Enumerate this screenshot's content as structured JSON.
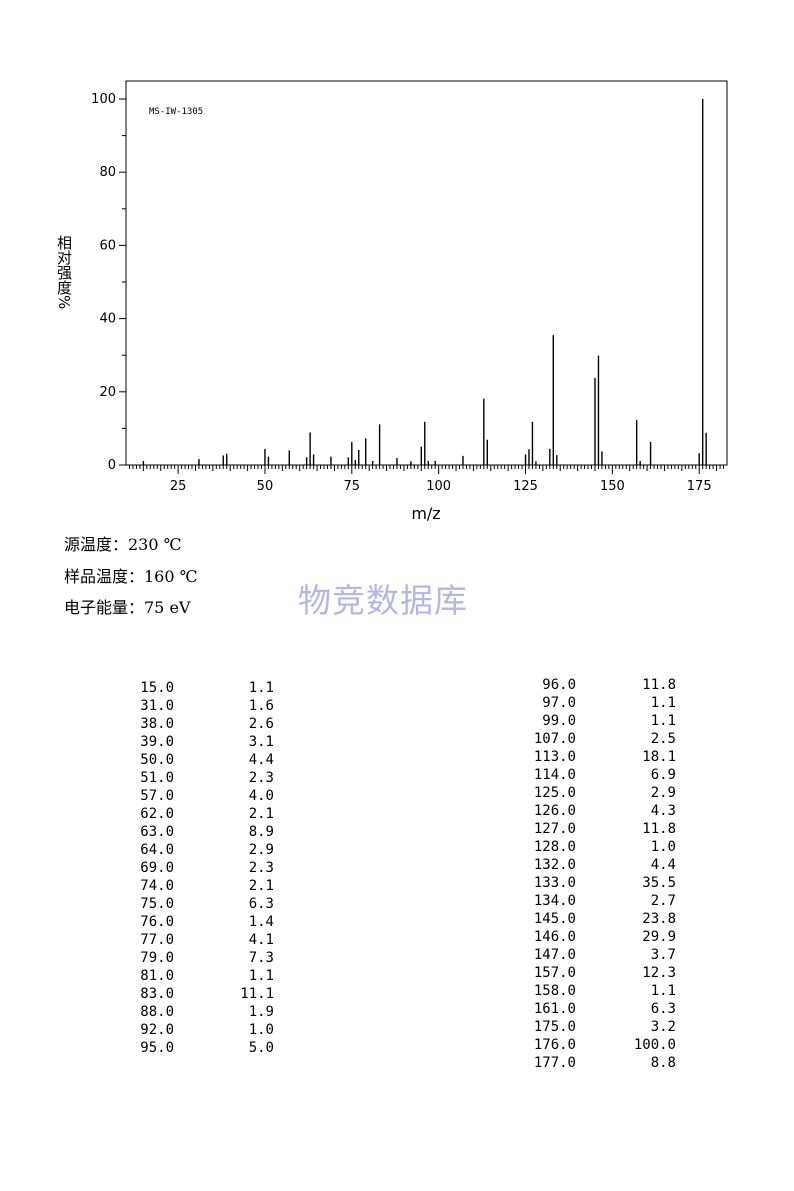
{
  "chart_data": {
    "type": "bar",
    "annotation": "MS-IW-1305",
    "xlabel": "m/z",
    "ylabel": "相对强度%",
    "xlim": [
      10,
      183
    ],
    "ylim": [
      0,
      100
    ],
    "xticks": [
      25,
      50,
      75,
      100,
      125,
      150,
      175
    ],
    "yticks": [
      0,
      20,
      40,
      60,
      80,
      100
    ],
    "grid": false,
    "peaks": [
      {
        "mz": 15.0,
        "intensity": 1.1
      },
      {
        "mz": 31.0,
        "intensity": 1.6
      },
      {
        "mz": 38.0,
        "intensity": 2.6
      },
      {
        "mz": 39.0,
        "intensity": 3.1
      },
      {
        "mz": 50.0,
        "intensity": 4.4
      },
      {
        "mz": 51.0,
        "intensity": 2.3
      },
      {
        "mz": 57.0,
        "intensity": 4.0
      },
      {
        "mz": 62.0,
        "intensity": 2.1
      },
      {
        "mz": 63.0,
        "intensity": 8.9
      },
      {
        "mz": 64.0,
        "intensity": 2.9
      },
      {
        "mz": 69.0,
        "intensity": 2.3
      },
      {
        "mz": 74.0,
        "intensity": 2.1
      },
      {
        "mz": 75.0,
        "intensity": 6.3
      },
      {
        "mz": 76.0,
        "intensity": 1.4
      },
      {
        "mz": 77.0,
        "intensity": 4.1
      },
      {
        "mz": 79.0,
        "intensity": 7.3
      },
      {
        "mz": 81.0,
        "intensity": 1.1
      },
      {
        "mz": 83.0,
        "intensity": 11.1
      },
      {
        "mz": 88.0,
        "intensity": 1.9
      },
      {
        "mz": 92.0,
        "intensity": 1.0
      },
      {
        "mz": 95.0,
        "intensity": 5.0
      },
      {
        "mz": 96.0,
        "intensity": 11.8
      },
      {
        "mz": 97.0,
        "intensity": 1.1
      },
      {
        "mz": 99.0,
        "intensity": 1.1
      },
      {
        "mz": 107.0,
        "intensity": 2.5
      },
      {
        "mz": 113.0,
        "intensity": 18.1
      },
      {
        "mz": 114.0,
        "intensity": 6.9
      },
      {
        "mz": 125.0,
        "intensity": 2.9
      },
      {
        "mz": 126.0,
        "intensity": 4.3
      },
      {
        "mz": 127.0,
        "intensity": 11.8
      },
      {
        "mz": 128.0,
        "intensity": 1.0
      },
      {
        "mz": 132.0,
        "intensity": 4.4
      },
      {
        "mz": 133.0,
        "intensity": 35.5
      },
      {
        "mz": 134.0,
        "intensity": 2.7
      },
      {
        "mz": 145.0,
        "intensity": 23.8
      },
      {
        "mz": 146.0,
        "intensity": 29.9
      },
      {
        "mz": 147.0,
        "intensity": 3.7
      },
      {
        "mz": 157.0,
        "intensity": 12.3
      },
      {
        "mz": 158.0,
        "intensity": 1.1
      },
      {
        "mz": 161.0,
        "intensity": 6.3
      },
      {
        "mz": 175.0,
        "intensity": 3.2
      },
      {
        "mz": 176.0,
        "intensity": 100.0
      },
      {
        "mz": 177.0,
        "intensity": 8.8
      }
    ]
  },
  "conditions": {
    "source_temp": "源温度：230 ℃",
    "sample_temp": "样品温度：160 ℃",
    "electron_energy": "电子能量：75 eV"
  },
  "watermark": "物竞数据库",
  "peak_table": {
    "left": [
      {
        "mz": "15.0",
        "intensity": "1.1"
      },
      {
        "mz": "31.0",
        "intensity": "1.6"
      },
      {
        "mz": "38.0",
        "intensity": "2.6"
      },
      {
        "mz": "39.0",
        "intensity": "3.1"
      },
      {
        "mz": "50.0",
        "intensity": "4.4"
      },
      {
        "mz": "51.0",
        "intensity": "2.3"
      },
      {
        "mz": "57.0",
        "intensity": "4.0"
      },
      {
        "mz": "62.0",
        "intensity": "2.1"
      },
      {
        "mz": "63.0",
        "intensity": "8.9"
      },
      {
        "mz": "64.0",
        "intensity": "2.9"
      },
      {
        "mz": "69.0",
        "intensity": "2.3"
      },
      {
        "mz": "74.0",
        "intensity": "2.1"
      },
      {
        "mz": "75.0",
        "intensity": "6.3"
      },
      {
        "mz": "76.0",
        "intensity": "1.4"
      },
      {
        "mz": "77.0",
        "intensity": "4.1"
      },
      {
        "mz": "79.0",
        "intensity": "7.3"
      },
      {
        "mz": "81.0",
        "intensity": "1.1"
      },
      {
        "mz": "83.0",
        "intensity": "11.1"
      },
      {
        "mz": "88.0",
        "intensity": "1.9"
      },
      {
        "mz": "92.0",
        "intensity": "1.0"
      },
      {
        "mz": "95.0",
        "intensity": "5.0"
      }
    ],
    "right": [
      {
        "mz": "96.0",
        "intensity": "11.8"
      },
      {
        "mz": "97.0",
        "intensity": "1.1"
      },
      {
        "mz": "99.0",
        "intensity": "1.1"
      },
      {
        "mz": "107.0",
        "intensity": "2.5"
      },
      {
        "mz": "113.0",
        "intensity": "18.1"
      },
      {
        "mz": "114.0",
        "intensity": "6.9"
      },
      {
        "mz": "125.0",
        "intensity": "2.9"
      },
      {
        "mz": "126.0",
        "intensity": "4.3"
      },
      {
        "mz": "127.0",
        "intensity": "11.8"
      },
      {
        "mz": "128.0",
        "intensity": "1.0"
      },
      {
        "mz": "132.0",
        "intensity": "4.4"
      },
      {
        "mz": "133.0",
        "intensity": "35.5"
      },
      {
        "mz": "134.0",
        "intensity": "2.7"
      },
      {
        "mz": "145.0",
        "intensity": "23.8"
      },
      {
        "mz": "146.0",
        "intensity": "29.9"
      },
      {
        "mz": "147.0",
        "intensity": "3.7"
      },
      {
        "mz": "157.0",
        "intensity": "12.3"
      },
      {
        "mz": "158.0",
        "intensity": "1.1"
      },
      {
        "mz": "161.0",
        "intensity": "6.3"
      },
      {
        "mz": "175.0",
        "intensity": "3.2"
      },
      {
        "mz": "176.0",
        "intensity": "100.0"
      },
      {
        "mz": "177.0",
        "intensity": "8.8"
      }
    ]
  }
}
